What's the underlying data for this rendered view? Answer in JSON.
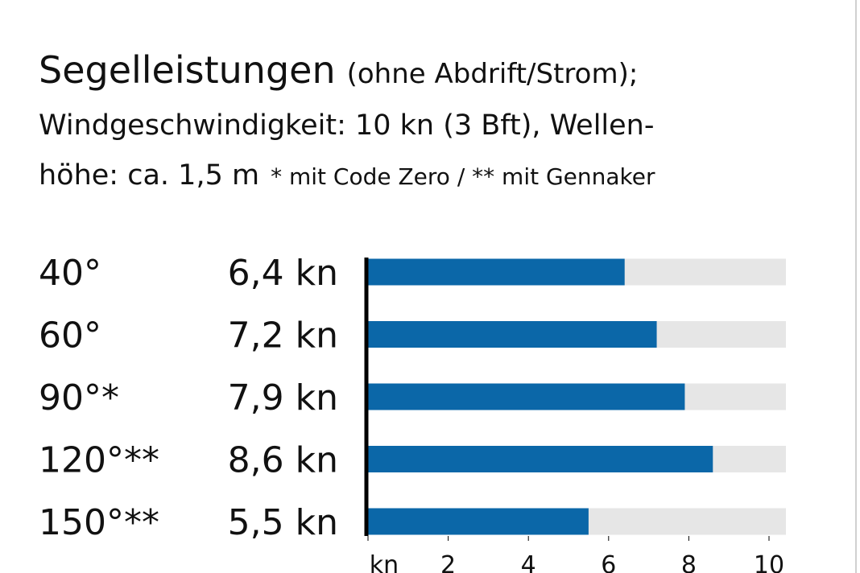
{
  "chart_data": {
    "type": "bar",
    "orientation": "horizontal",
    "title": "Segelleistungen",
    "subtitle": "(ohne Abdrift/Strom);",
    "notes": [
      "Windgeschwindigkeit: 10 kn (3 Bft), Wellen-",
      "höhe: ca. 1,5 m",
      "* mit Code Zero / ** mit Gennaker"
    ],
    "categories": [
      "40°",
      "60°",
      "90°*",
      "120°**",
      "150°**"
    ],
    "values": [
      6.4,
      7.2,
      7.9,
      8.6,
      5.5
    ],
    "value_labels": [
      "6,4 kn",
      "7,2 kn",
      "7,9 kn",
      "8,6 kn",
      "5,5 kn"
    ],
    "color": "#0b67a8",
    "xlim": [
      0,
      10
    ],
    "xticks": [
      {
        "value": 0,
        "label": "kn"
      },
      2,
      4,
      6,
      8,
      10
    ]
  }
}
